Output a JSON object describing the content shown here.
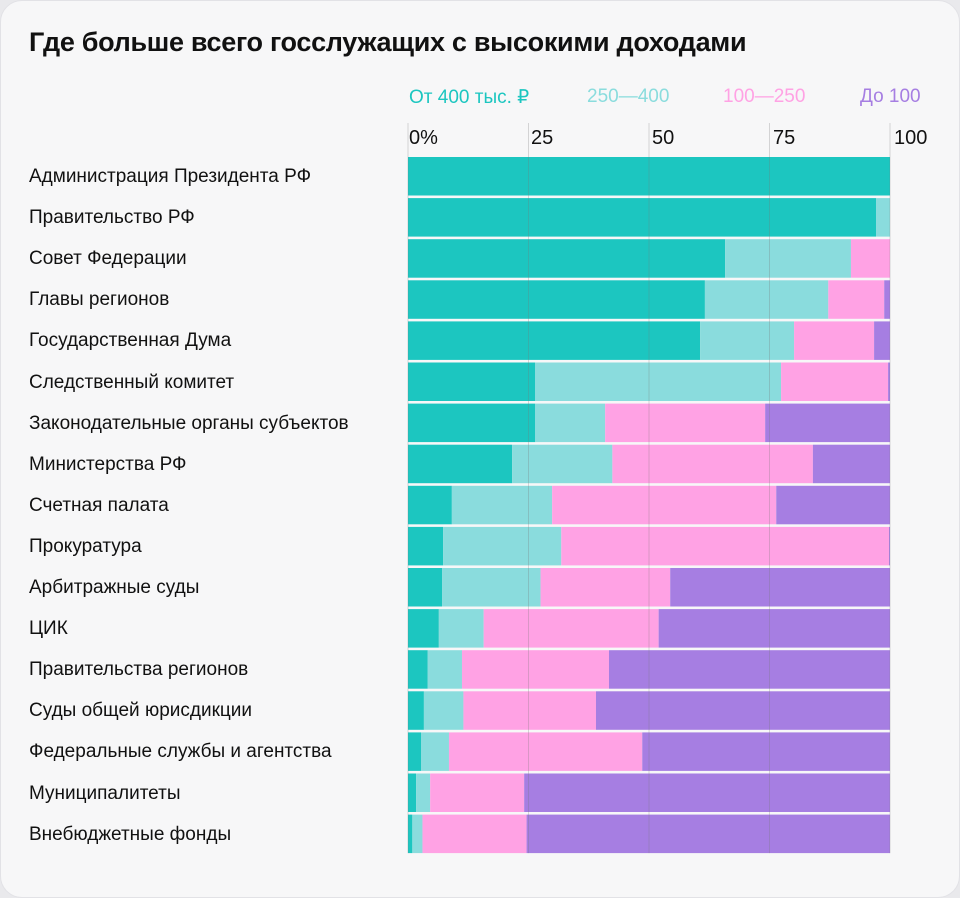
{
  "chart_data": {
    "type": "bar",
    "orientation": "horizontal",
    "stacked": "percent",
    "title": "Где больше всего госслужащих с высокими доходами",
    "xlim": [
      0,
      100
    ],
    "ticks": [
      {
        "value": 0,
        "label": "0%"
      },
      {
        "value": 25,
        "label": "25"
      },
      {
        "value": 50,
        "label": "50"
      },
      {
        "value": 75,
        "label": "75"
      },
      {
        "value": 100,
        "label": "100"
      }
    ],
    "grid": true,
    "legend_position": "top",
    "categories": [
      "Администрация Президента РФ",
      "Правительство РФ",
      "Совет Федерации",
      "Главы регионов",
      "Государственная Дума",
      "Следственный комитет",
      "Законодательные органы субъектов",
      "Министерства РФ",
      "Счетная палата",
      "Прокуратура",
      "Арбитражные суды",
      "ЦИК",
      "Правительства регионов",
      "Суды общей юрисдикции",
      "Федеральные службы и агентства",
      "Муниципалитеты",
      "Внебюджетные фонды"
    ],
    "series": [
      {
        "name": "От 400 тыс. ₽",
        "color": "#1cc6c0",
        "values": [
          100,
          97.1,
          65.8,
          61.6,
          60.6,
          26.4,
          26.4,
          21.6,
          9.1,
          7.3,
          7.1,
          6.4,
          4.1,
          3.3,
          2.7,
          1.7,
          0.9
        ]
      },
      {
        "name": "250—400",
        "color": "#8adcdd",
        "values": [
          0,
          2.9,
          26.1,
          25.6,
          19.5,
          51.0,
          14.5,
          20.8,
          20.8,
          24.5,
          20.4,
          9.3,
          7.1,
          8.2,
          5.8,
          2.9,
          2.1
        ]
      },
      {
        "name": "100—250",
        "color": "#ffa2e4",
        "values": [
          0,
          0,
          8.1,
          11.6,
          16.6,
          22.2,
          33.2,
          41.6,
          46.5,
          68.0,
          26.9,
          36.3,
          30.5,
          27.5,
          40.1,
          19.5,
          21.6
        ]
      },
      {
        "name": "До 100",
        "color": "#a67ee2",
        "values": [
          0,
          0,
          0,
          1.2,
          3.3,
          0.4,
          25.9,
          16.0,
          23.6,
          0.2,
          45.6,
          48.0,
          58.3,
          61.0,
          51.4,
          75.9,
          75.4
        ]
      }
    ]
  }
}
